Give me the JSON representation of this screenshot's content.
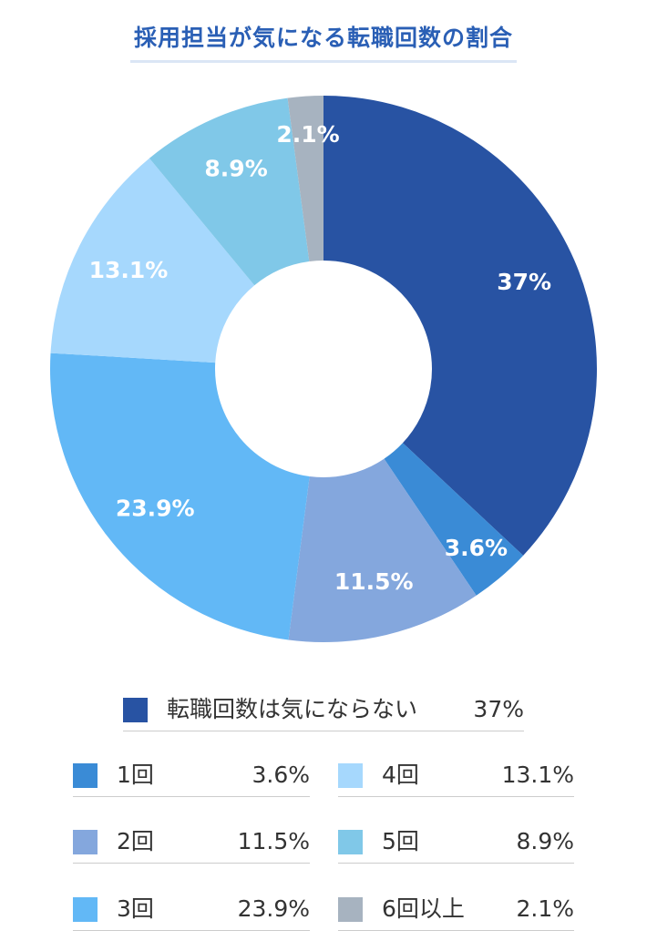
{
  "chart_data": {
    "type": "pie",
    "title": "採用担当が気になる転職回数の割合",
    "donut": true,
    "start_angle_deg": 0,
    "categories": [
      "転職回数は気にならない",
      "1回",
      "2回",
      "3回",
      "4回",
      "5回",
      "6回以上"
    ],
    "values": [
      37,
      3.6,
      11.5,
      23.9,
      13.1,
      8.9,
      2.1
    ],
    "value_labels": [
      "37%",
      "3.6%",
      "11.5%",
      "23.9%",
      "13.1%",
      "8.9%",
      "2.1%"
    ],
    "colors": [
      "#2853a3",
      "#3a8bd6",
      "#84a7dd",
      "#62b8f6",
      "#a6d8fd",
      "#80c8e8",
      "#a7b3c0"
    ],
    "label_color": "#ffffff"
  },
  "legend": {
    "top": {
      "label": "転職回数は気にならない",
      "value": "37%",
      "color": "#2853a3"
    },
    "left": [
      {
        "label": "1回",
        "value": "3.6%",
        "color": "#3a8bd6"
      },
      {
        "label": "2回",
        "value": "11.5%",
        "color": "#84a7dd"
      },
      {
        "label": "3回",
        "value": "23.9%",
        "color": "#62b8f6"
      }
    ],
    "right": [
      {
        "label": "4回",
        "value": "13.1%",
        "color": "#a6d8fd"
      },
      {
        "label": "5回",
        "value": "8.9%",
        "color": "#80c8e8"
      },
      {
        "label": "6回以上",
        "value": "2.1%",
        "color": "#a7b3c0"
      }
    ]
  }
}
